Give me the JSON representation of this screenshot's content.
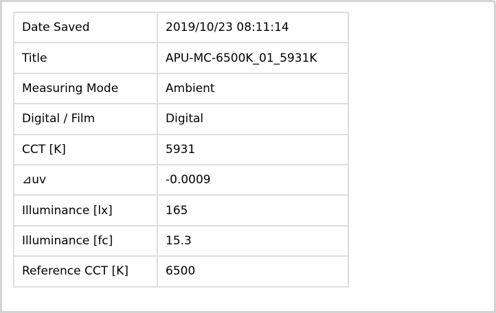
{
  "rows": [
    {
      "label": "Date Saved",
      "value": "2019/10/23 08:11:14"
    },
    {
      "label": "Title",
      "value": "APU-MC-6500K_01_5931K"
    },
    {
      "label": "Measuring Mode",
      "value": "Ambient"
    },
    {
      "label": "Digital / Film",
      "value": "Digital"
    },
    {
      "label": "CCT [K]",
      "value": "5931"
    },
    {
      "label": "⊿uv",
      "value": "-0.0009"
    },
    {
      "label": "Illuminance [lx]",
      "value": "165"
    },
    {
      "label": "Illuminance [fc]",
      "value": "15.3"
    },
    {
      "label": "Reference CCT [K]",
      "value": "6500"
    }
  ]
}
